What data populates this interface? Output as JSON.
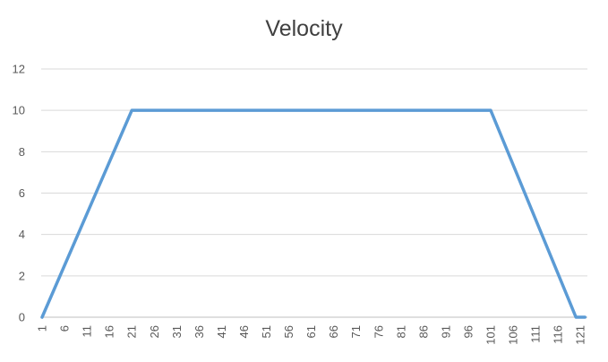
{
  "chart_data": {
    "type": "line",
    "title": "Velocity",
    "xlabel": "",
    "ylabel": "",
    "x": [
      1,
      21,
      101,
      120,
      122
    ],
    "series": [
      {
        "values": [
          0,
          10,
          10,
          0,
          0
        ],
        "color": "#5b9bd5"
      }
    ],
    "ylim": [
      0,
      12
    ],
    "yticks": [
      "0",
      "2",
      "4",
      "6",
      "8",
      "10",
      "12"
    ],
    "xlim": [
      1,
      122
    ],
    "xticks": [
      "1",
      "6",
      "11",
      "16",
      "21",
      "26",
      "31",
      "36",
      "41",
      "46",
      "51",
      "56",
      "61",
      "66",
      "71",
      "76",
      "81",
      "86",
      "91",
      "96",
      "101",
      "106",
      "111",
      "116",
      "121"
    ],
    "grid": true,
    "legend": "none"
  }
}
